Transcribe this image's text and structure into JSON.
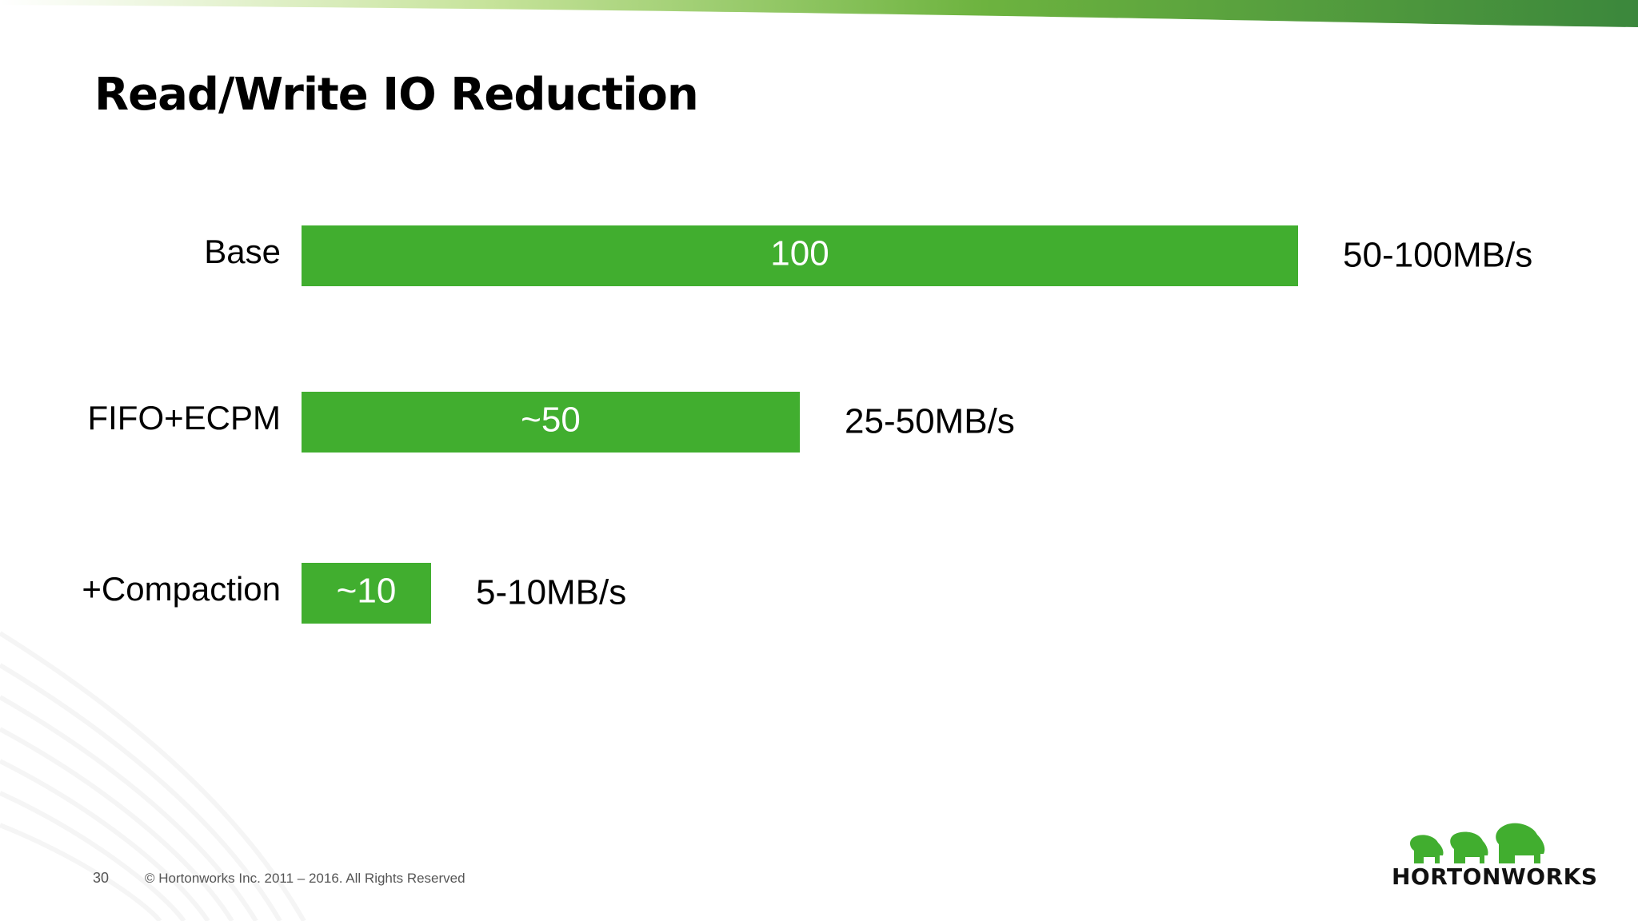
{
  "slide": {
    "title": "Read/Write IO Reduction",
    "page_number": "30",
    "copyright": "© Hortonworks Inc. 2011 – 2016. All Rights Reserved",
    "logo_text": "HORTONWORKS"
  },
  "colors": {
    "bar": "#41ae2f",
    "stripe_start": "#ffffff",
    "stripe_mid": "#8cc63f",
    "stripe_end": "#3b873c"
  },
  "chart_data": {
    "type": "bar",
    "orientation": "horizontal",
    "categories": [
      "Base",
      "FIFO+ECPM",
      "+Compaction"
    ],
    "values": [
      100,
      50,
      13
    ],
    "data_labels": [
      "100",
      "~50",
      "~10"
    ],
    "rate_labels": [
      "50-100MB/s",
      "25-50MB/s",
      "5-10MB/s"
    ],
    "xlim": [
      0,
      100
    ],
    "grid": false,
    "legend": "none"
  }
}
